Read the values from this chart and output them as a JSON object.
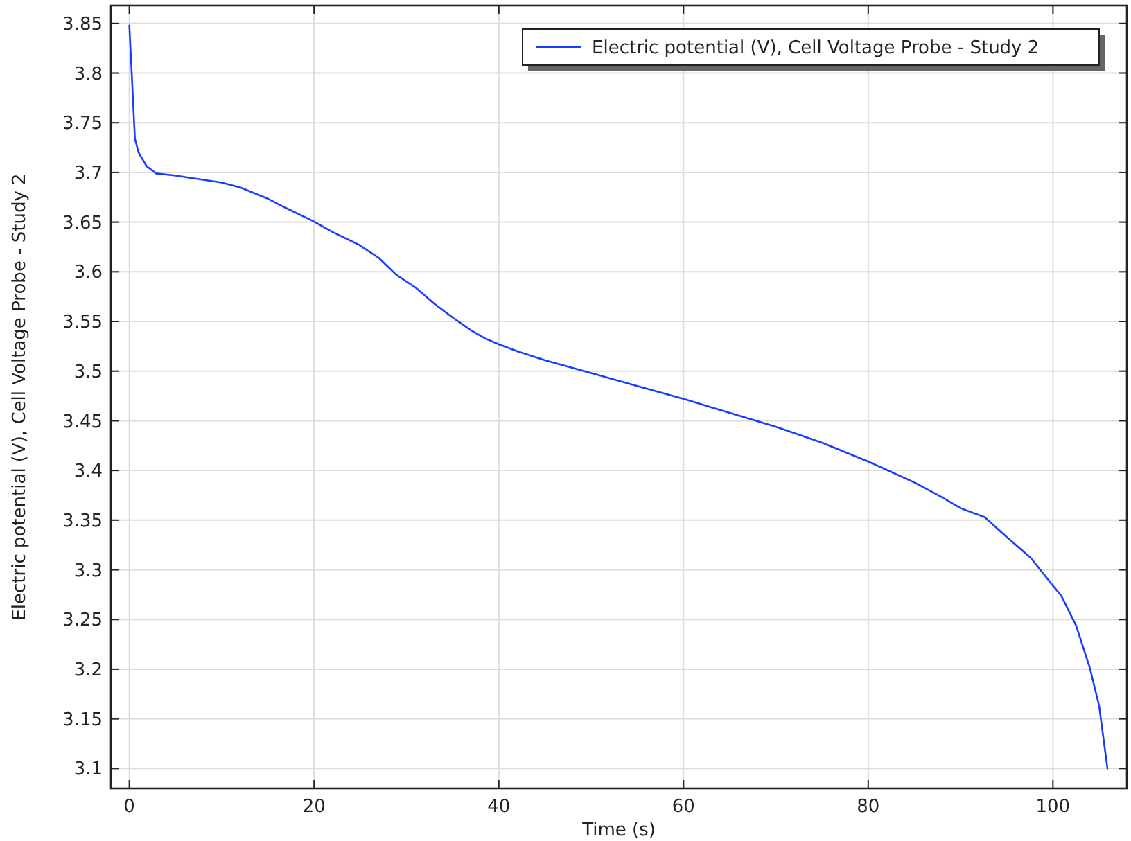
{
  "chart_data": {
    "type": "line",
    "xlabel": "Time (s)",
    "ylabel": "Electric potential (V), Cell Voltage Probe - Study 2",
    "xlim": [
      -2,
      108
    ],
    "xticks": [
      0,
      20,
      40,
      60,
      80,
      100
    ],
    "ylim": [
      3.08,
      3.868
    ],
    "yticks": [
      3.1,
      3.15,
      3.2,
      3.25,
      3.3,
      3.35,
      3.4,
      3.45,
      3.5,
      3.55,
      3.6,
      3.65,
      3.7,
      3.75,
      3.8,
      3.85
    ],
    "grid": true,
    "legend": "top right",
    "line_style": "solid",
    "marker": "none",
    "series": [
      {
        "name": "Electric potential (V), Cell Voltage Probe - Study 2",
        "color": "#1a3cff",
        "x": [
          0,
          0.36,
          0.6,
          1,
          1.5,
          1.9,
          2.9,
          4.9,
          7,
          9.9,
          12,
          14.9,
          17,
          19.9,
          22,
          24.9,
          27,
          28.9,
          31,
          33,
          35,
          37,
          38.5,
          40,
          42,
          45,
          50,
          55,
          60,
          65,
          70,
          75,
          80,
          85,
          88,
          90,
          92.6,
          95,
          97.6,
          100,
          100.9,
          102.5,
          104,
          105,
          105.9
        ],
        "values": [
          3.848,
          3.78,
          3.734,
          3.72,
          3.712,
          3.706,
          3.699,
          3.697,
          3.694,
          3.69,
          3.685,
          3.674,
          3.664,
          3.651,
          3.64,
          3.627,
          3.614,
          3.597,
          3.584,
          3.568,
          3.554,
          3.541,
          3.533,
          3.527,
          3.52,
          3.511,
          3.498,
          3.485,
          3.472,
          3.458,
          3.444,
          3.428,
          3.409,
          3.388,
          3.373,
          3.362,
          3.353,
          3.333,
          3.312,
          3.284,
          3.274,
          3.244,
          3.201,
          3.163,
          3.1
        ]
      }
    ]
  }
}
